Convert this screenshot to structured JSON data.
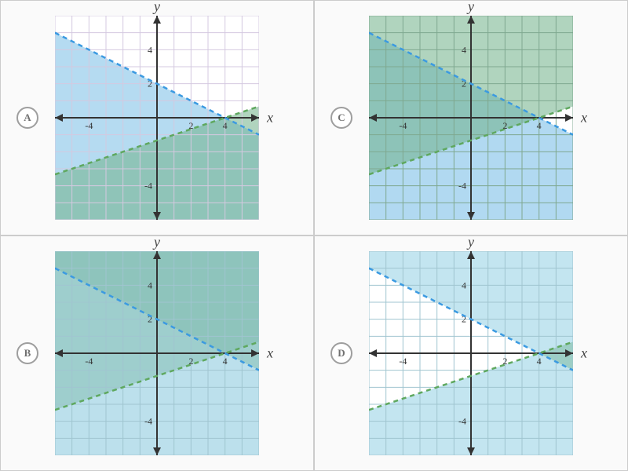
{
  "panels": [
    {
      "id": "A",
      "label": "A",
      "xlim": [
        -6,
        6
      ],
      "ylim": [
        -6,
        6
      ],
      "tick_values": [
        -4,
        -2,
        2,
        4
      ],
      "tick_labels_shown": [
        "-4",
        "2",
        "4"
      ],
      "tick_labels_y_shown": [
        "2",
        "4",
        "-4"
      ],
      "grid_step": 1,
      "background_color": "#fafafa",
      "plot_bg": "#ffffff",
      "grid_color": "#d4c9e0",
      "lines": [
        {
          "slope": -0.5,
          "intercept": 2,
          "color": "#3b9ae1",
          "dash": "6,5",
          "width": 2.5
        },
        {
          "slope": 0.3333,
          "intercept": -1.3333,
          "color": "#5fa85f",
          "dash": "6,5",
          "width": 2.5
        }
      ],
      "regions": [
        {
          "type": "below_line",
          "line_idx": 0,
          "color": "#a8d5ef",
          "opacity": 0.85
        },
        {
          "type": "below_line",
          "line_idx": 1,
          "color": "#6fb088",
          "opacity": 0.55
        }
      ]
    },
    {
      "id": "C",
      "label": "C",
      "xlim": [
        -6,
        6
      ],
      "ylim": [
        -6,
        6
      ],
      "tick_values": [
        -4,
        -2,
        2,
        4
      ],
      "tick_labels_shown": [
        "-4",
        "2",
        "4"
      ],
      "tick_labels_y_shown": [
        "2",
        "4",
        "-4"
      ],
      "grid_step": 1,
      "background_color": "#fafafa",
      "plot_bg": "#ffffff",
      "grid_color": "#7fa890",
      "lines": [
        {
          "slope": -0.5,
          "intercept": 2,
          "color": "#3b9ae1",
          "dash": "6,5",
          "width": 2.5
        },
        {
          "slope": 0.3333,
          "intercept": -1.3333,
          "color": "#5fa85f",
          "dash": "6,5",
          "width": 2.5
        }
      ],
      "regions": [
        {
          "type": "below_line",
          "line_idx": 0,
          "color": "#a8d5ef",
          "opacity": 0.9
        },
        {
          "type": "above_line",
          "line_idx": 1,
          "color": "#6fb088",
          "opacity": 0.55
        }
      ]
    },
    {
      "id": "B",
      "label": "B",
      "xlim": [
        -6,
        6
      ],
      "ylim": [
        -6,
        6
      ],
      "tick_values": [
        -4,
        -2,
        2,
        4
      ],
      "tick_labels_shown": [
        "-4",
        "2",
        "4"
      ],
      "tick_labels_y_shown": [
        "2",
        "4",
        "-4"
      ],
      "grid_step": 1,
      "background_color": "#fafafa",
      "plot_bg": "#bce0ec",
      "grid_color": "#a0c5d0",
      "lines": [
        {
          "slope": -0.5,
          "intercept": 2,
          "color": "#3b9ae1",
          "dash": "6,5",
          "width": 2.5
        },
        {
          "slope": 0.3333,
          "intercept": -1.3333,
          "color": "#5fa85f",
          "dash": "6,5",
          "width": 2.5
        }
      ],
      "regions": [
        {
          "type": "full",
          "color": "#bce0ec",
          "opacity": 1
        },
        {
          "type": "above_line",
          "line_idx": 0,
          "color": "#7ab8a8",
          "opacity": 0.45
        },
        {
          "type": "above_line",
          "line_idx": 1,
          "color": "#7ab8a8",
          "opacity": 0.45
        }
      ]
    },
    {
      "id": "D",
      "label": "D",
      "xlim": [
        -6,
        6
      ],
      "ylim": [
        -6,
        6
      ],
      "tick_values": [
        -4,
        -2,
        2,
        4
      ],
      "tick_labels_shown": [
        "-4",
        "2",
        "4"
      ],
      "tick_labels_y_shown": [
        "2",
        "4",
        "-4"
      ],
      "grid_step": 1,
      "background_color": "#fafafa",
      "plot_bg": "#ffffff",
      "grid_color": "#a0c5d0",
      "lines": [
        {
          "slope": -0.5,
          "intercept": 2,
          "color": "#3b9ae1",
          "dash": "6,5",
          "width": 2.5
        },
        {
          "slope": 0.3333,
          "intercept": -1.3333,
          "color": "#5fa85f",
          "dash": "6,5",
          "width": 2.5
        }
      ],
      "regions": [
        {
          "type": "above_line",
          "line_idx": 0,
          "color": "#bde2ee",
          "opacity": 0.9
        },
        {
          "type": "below_line",
          "line_idx": 1,
          "color": "#bde2ee",
          "opacity": 0.9
        },
        {
          "type": "intersection_above_below",
          "line_a": 0,
          "line_b": 1,
          "color": "#6fb088",
          "opacity": 0.4
        }
      ]
    }
  ],
  "axis_labels": {
    "x": "x",
    "y": "y"
  },
  "colors": {
    "axis": "#333333",
    "arrow": "#333333",
    "circle_border": "#9e9e9e",
    "circle_text": "#707070"
  },
  "svg_size": 260,
  "font_sizes": {
    "axis_label": 18,
    "tick": 12,
    "option": 13
  }
}
